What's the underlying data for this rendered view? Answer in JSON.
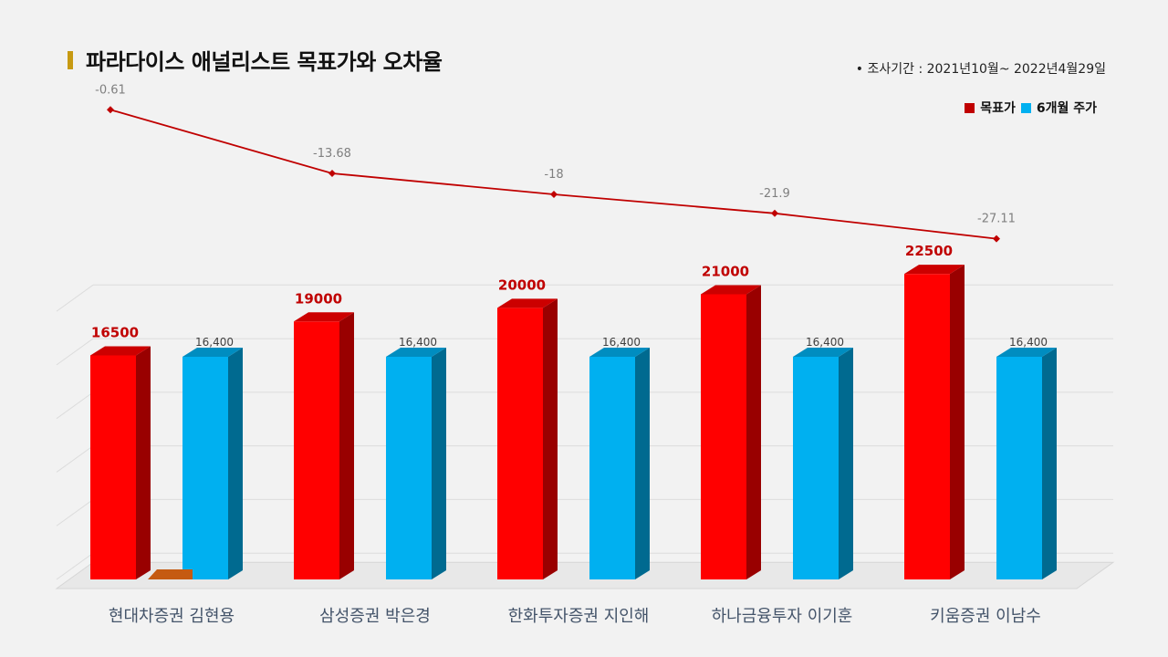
{
  "header": {
    "title": "파라다이스 애널리스트 목표가와 오차율",
    "period": "•  조사기간 : 2021년10월~ 2022년4월29일"
  },
  "legend": [
    {
      "name": "목표가",
      "color": "#c00000"
    },
    {
      "name": "6개월 주가",
      "color": "#00b0f0"
    }
  ],
  "chart_data": [
    {
      "type": "line",
      "categories": [
        "현대차증권 김현용",
        "삼성증권 박은경",
        "한화투자증권 지인해",
        "하나금융투자 이기훈",
        "키움증권 이남수"
      ],
      "series": [
        {
          "values": [
            -0.61,
            -13.68,
            -18,
            -21.9,
            -27.11
          ],
          "labels": [
            "-0.61",
            "-13.68",
            "-18",
            "-21.9",
            "-27.11"
          ]
        }
      ],
      "color": "#c00000"
    },
    {
      "type": "bar",
      "categories": [
        "현대차증권 김현용",
        "삼성증권 박은경",
        "한화투자증권 지인해",
        "하나금융투자 이기훈",
        "키움증권 이남수"
      ],
      "series": [
        {
          "name": "목표가",
          "values": [
            16500,
            19000,
            20000,
            21000,
            22500
          ],
          "labels": [
            "16500",
            "19000",
            "20000",
            "21000",
            "22500"
          ],
          "color": "#ff0000"
        },
        {
          "name": "6개월 주가",
          "values": [
            16400,
            16400,
            16400,
            16400,
            16400
          ],
          "labels": [
            "16,400",
            "16,400",
            "16,400",
            "16,400",
            "16,400"
          ],
          "color": "#00b0f0"
        }
      ],
      "ylim": [
        0,
        27000
      ]
    }
  ]
}
